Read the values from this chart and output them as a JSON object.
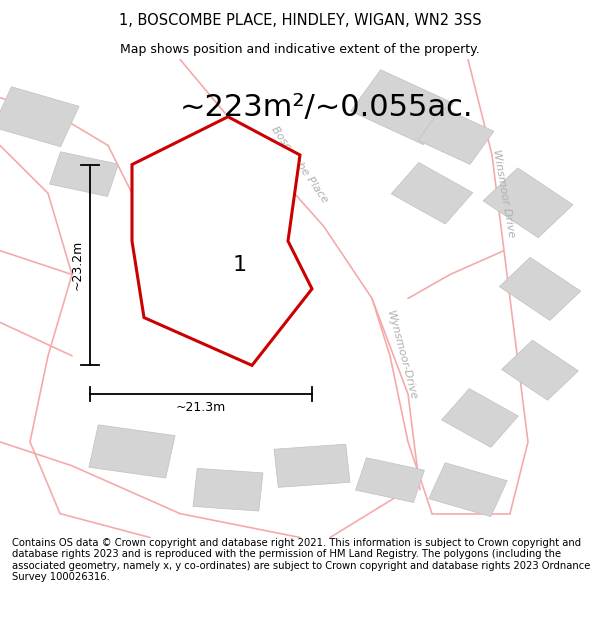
{
  "title": "1, BOSCOMBE PLACE, HINDLEY, WIGAN, WN2 3SS",
  "subtitle": "Map shows position and indicative extent of the property.",
  "area_label": "~223m²/~0.055ac.",
  "width_label": "~21.3m",
  "height_label": "~23.2m",
  "property_number": "1",
  "footer": "Contains OS data © Crown copyright and database right 2021. This information is subject to Crown copyright and database rights 2023 and is reproduced with the permission of HM Land Registry. The polygons (including the associated geometry, namely x, y co-ordinates) are subject to Crown copyright and database rights 2023 Ordnance Survey 100026316.",
  "map_bg": "#efefef",
  "property_fill": "#ffffff",
  "property_edge": "#cc0000",
  "road_line_color": "#f5aaaa",
  "building_fill": "#d4d4d4",
  "building_edge": "#c0c0c0",
  "road_label_color": "#b0b0b0",
  "road_label_size": 8,
  "title_size": 10.5,
  "subtitle_size": 9,
  "area_label_size": 22,
  "footer_size": 7.2,
  "property_lw": 2.2
}
